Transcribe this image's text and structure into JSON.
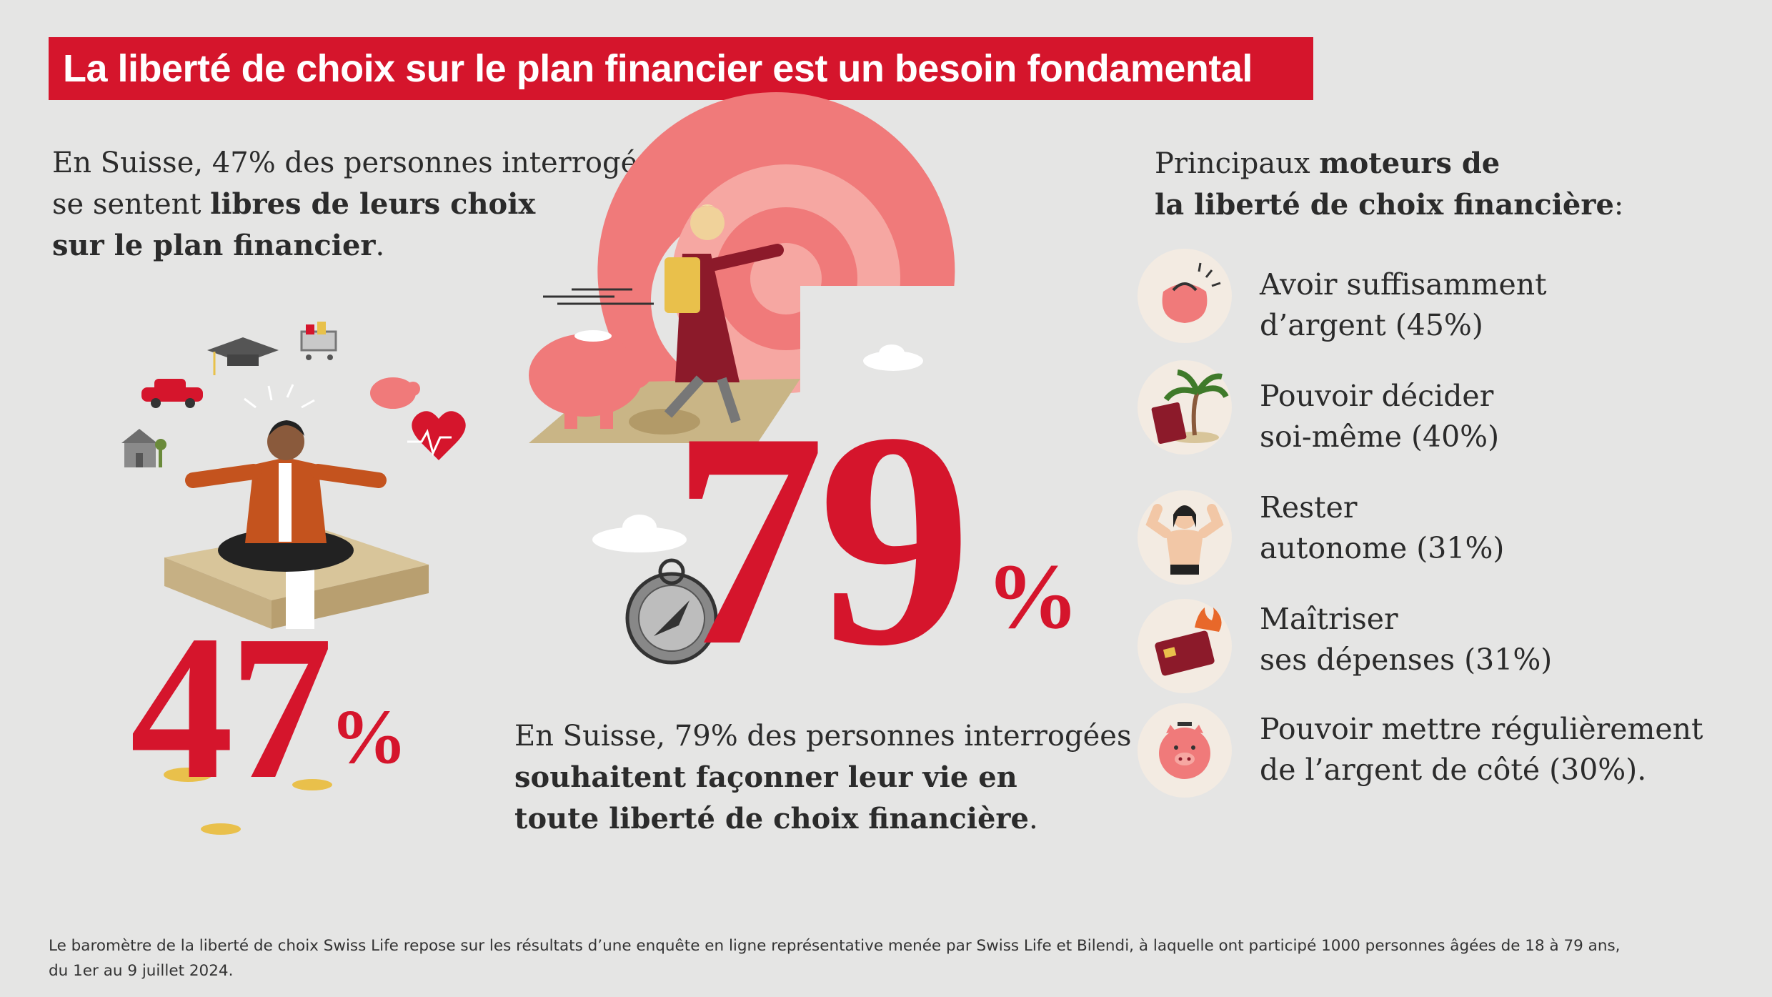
{
  "header": {
    "title": "La liberté de choix sur le plan financier est un besoin fondamental"
  },
  "left_stat": {
    "intro_line1": "En Suisse, 47% des personnes interrogées",
    "intro_line2_plain": "se sentent ",
    "intro_line2_bold": "libres de leurs choix",
    "intro_line3_bold": "sur le plan financier",
    "intro_line3_end": ".",
    "number": "47",
    "percent": "%"
  },
  "center_stat": {
    "number": "79",
    "percent": "%",
    "text_line1": "En Suisse, 79% des personnes interrogées",
    "text_line2_bold": "souhaitent façonner leur vie en",
    "text_line3_bold": "toute liberté de choix financière",
    "text_line3_end": "."
  },
  "drivers": {
    "heading_line1_plain": "Principaux ",
    "heading_line1_bold": "moteurs de",
    "heading_line2_bold": "la liberté de choix financière",
    "heading_line2_end": ":",
    "items": [
      {
        "line1": "Avoir suffisamment",
        "line2": "d’argent (45%)",
        "icon": "purse-icon",
        "value": 45
      },
      {
        "line1": "Pouvoir décider",
        "line2": "soi-même (40%)",
        "icon": "palm-tree-passport-icon",
        "value": 40
      },
      {
        "line1": "Rester",
        "line2": "autonome (31%)",
        "icon": "strong-person-icon",
        "value": 31
      },
      {
        "line1": "Maîtriser",
        "line2": "ses dépenses (31%)",
        "icon": "burning-credit-card-icon",
        "value": 31
      },
      {
        "line1": "Pouvoir mettre régulièrement",
        "line2": "de l’argent de côté (30%).",
        "icon": "piggy-bank-icon",
        "value": 30
      }
    ]
  },
  "footer": {
    "line1": "Le baromètre de la liberté de choix Swiss Life repose sur les résultats d’une enquête en ligne représentative menée par Swiss Life et Bilendi, à laquelle ont participé 1000 personnes âgées de 18 à 79 ans,",
    "line2": "du 1er au 9 juillet 2024."
  },
  "colors": {
    "accent": "#d5152c",
    "background": "#e5e5e4",
    "coral": "#f07a7a",
    "icon_bg": "#f3ebe2"
  }
}
